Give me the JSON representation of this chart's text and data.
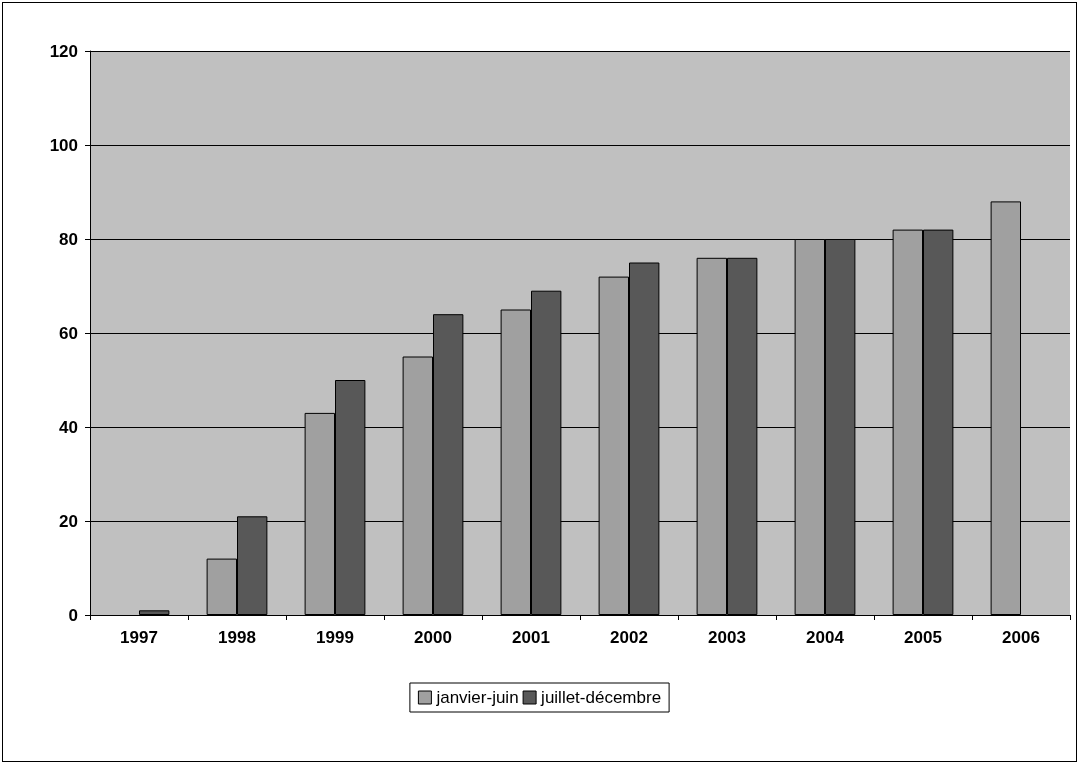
{
  "chart_data": {
    "type": "bar",
    "categories": [
      "1997",
      "1998",
      "1999",
      "2000",
      "2001",
      "2002",
      "2003",
      "2004",
      "2005",
      "2006"
    ],
    "series": [
      {
        "name": "janvier-juin",
        "color": "#a0a0a0",
        "values": [
          null,
          12,
          43,
          55,
          65,
          72,
          76,
          80,
          82,
          88
        ]
      },
      {
        "name": "juillet-décembre",
        "color": "#585858",
        "values": [
          1,
          21,
          50,
          64,
          69,
          75,
          76,
          80,
          82,
          null
        ]
      }
    ],
    "ylim": [
      0,
      120
    ],
    "yticks": [
      0,
      20,
      40,
      60,
      80,
      100,
      120
    ],
    "grid": "y",
    "legend": "bottom"
  }
}
